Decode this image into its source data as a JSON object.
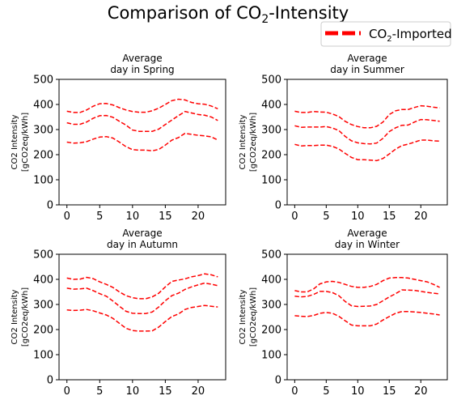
{
  "figure": {
    "title_main": "Comparison of CO",
    "title_sub": "2",
    "title_tail": "-Intensity",
    "legend": {
      "label_main": "CO",
      "label_sub": "2",
      "label_tail": "-Imported",
      "color": "#ff0000",
      "placement": "top-right"
    }
  },
  "chart_data": [
    {
      "type": "line",
      "title": [
        "Average",
        "day in Spring"
      ],
      "ylabel": [
        "CO2 Intensity",
        "[gCO2eq/kWh]"
      ],
      "xlim": [
        -1.2,
        24.2
      ],
      "ylim": [
        0,
        500
      ],
      "xticks": [
        0,
        5,
        10,
        15,
        20
      ],
      "yticks": [
        0,
        100,
        200,
        300,
        400,
        500
      ],
      "line_color": "#ff0000",
      "line_style": "dashed",
      "x": [
        0,
        1,
        2,
        3,
        4,
        5,
        6,
        7,
        8,
        9,
        10,
        11,
        12,
        13,
        14,
        15,
        16,
        17,
        18,
        19,
        20,
        21,
        22,
        23
      ],
      "series": [
        {
          "values": [
            373,
            368,
            368,
            378,
            393,
            403,
            404,
            398,
            387,
            378,
            372,
            369,
            369,
            375,
            385,
            400,
            415,
            421,
            418,
            408,
            403,
            401,
            394,
            383
          ]
        },
        {
          "values": [
            327,
            321,
            321,
            330,
            345,
            355,
            356,
            349,
            333,
            318,
            298,
            293,
            293,
            293,
            302,
            320,
            338,
            355,
            372,
            366,
            360,
            357,
            350,
            336
          ]
        },
        {
          "values": [
            250,
            246,
            247,
            252,
            262,
            270,
            272,
            266,
            250,
            232,
            220,
            218,
            218,
            215,
            221,
            238,
            258,
            268,
            285,
            281,
            277,
            275,
            271,
            258
          ]
        }
      ]
    },
    {
      "type": "line",
      "title": [
        "Average",
        "day in Summer"
      ],
      "ylabel": [
        "CO2 Intensity",
        "[gCO2eq/kWh]"
      ],
      "xlim": [
        -1.2,
        24.2
      ],
      "ylim": [
        0,
        500
      ],
      "xticks": [
        0,
        5,
        10,
        15,
        20
      ],
      "yticks": [
        0,
        100,
        200,
        300,
        400,
        500
      ],
      "line_color": "#ff0000",
      "line_style": "dashed",
      "x": [
        0,
        1,
        2,
        3,
        4,
        5,
        6,
        7,
        8,
        9,
        10,
        11,
        12,
        13,
        14,
        15,
        16,
        17,
        18,
        19,
        20,
        21,
        22,
        23
      ],
      "series": [
        {
          "values": [
            373,
            368,
            368,
            372,
            370,
            369,
            362,
            352,
            333,
            320,
            312,
            307,
            307,
            313,
            330,
            360,
            375,
            380,
            380,
            388,
            395,
            393,
            389,
            386
          ]
        },
        {
          "values": [
            315,
            309,
            310,
            310,
            310,
            312,
            306,
            296,
            273,
            255,
            247,
            244,
            243,
            246,
            265,
            292,
            307,
            317,
            318,
            330,
            340,
            339,
            336,
            333
          ]
        },
        {
          "values": [
            241,
            235,
            236,
            236,
            238,
            238,
            233,
            223,
            205,
            189,
            180,
            180,
            178,
            176,
            185,
            203,
            222,
            236,
            242,
            250,
            258,
            258,
            255,
            254
          ]
        }
      ]
    },
    {
      "type": "line",
      "title": [
        "Average",
        "day in Autumn"
      ],
      "ylabel": [
        "CO2 Intensity",
        "[gCO2eq/kWh]"
      ],
      "xlim": [
        -1.2,
        24.2
      ],
      "ylim": [
        0,
        500
      ],
      "xticks": [
        0,
        5,
        10,
        15,
        20
      ],
      "yticks": [
        0,
        100,
        200,
        300,
        400,
        500
      ],
      "line_color": "#ff0000",
      "line_style": "dashed",
      "x": [
        0,
        1,
        2,
        3,
        4,
        5,
        6,
        7,
        8,
        9,
        10,
        11,
        12,
        13,
        14,
        15,
        16,
        17,
        18,
        19,
        20,
        21,
        22,
        23
      ],
      "series": [
        {
          "values": [
            405,
            400,
            401,
            408,
            403,
            390,
            380,
            368,
            350,
            335,
            327,
            323,
            323,
            330,
            345,
            370,
            392,
            397,
            402,
            410,
            415,
            422,
            418,
            410
          ]
        },
        {
          "values": [
            365,
            361,
            362,
            365,
            355,
            343,
            333,
            314,
            293,
            273,
            265,
            264,
            264,
            270,
            290,
            315,
            335,
            345,
            360,
            370,
            378,
            385,
            381,
            375
          ]
        },
        {
          "values": [
            278,
            276,
            277,
            280,
            275,
            266,
            258,
            245,
            225,
            205,
            196,
            194,
            194,
            195,
            210,
            232,
            252,
            262,
            280,
            288,
            292,
            296,
            293,
            290
          ]
        }
      ]
    },
    {
      "type": "line",
      "title": [
        "Average",
        "day in Winter"
      ],
      "ylabel": [
        "CO2 Intensity",
        "[gCO2eq/kWh]"
      ],
      "xlim": [
        -1.2,
        24.2
      ],
      "ylim": [
        0,
        500
      ],
      "xticks": [
        0,
        5,
        10,
        15,
        20
      ],
      "yticks": [
        0,
        100,
        200,
        300,
        400,
        500
      ],
      "line_color": "#ff0000",
      "line_style": "dashed",
      "x": [
        0,
        1,
        2,
        3,
        4,
        5,
        6,
        7,
        8,
        9,
        10,
        11,
        12,
        13,
        14,
        15,
        16,
        17,
        18,
        19,
        20,
        21,
        22,
        23
      ],
      "series": [
        {
          "values": [
            355,
            350,
            350,
            362,
            382,
            390,
            392,
            388,
            380,
            372,
            368,
            368,
            372,
            380,
            395,
            405,
            407,
            407,
            405,
            400,
            395,
            390,
            380,
            368
          ]
        },
        {
          "values": [
            333,
            330,
            332,
            340,
            352,
            352,
            347,
            335,
            312,
            295,
            292,
            293,
            294,
            300,
            315,
            330,
            343,
            358,
            357,
            356,
            352,
            348,
            345,
            342
          ]
        },
        {
          "values": [
            255,
            253,
            252,
            256,
            265,
            268,
            265,
            253,
            235,
            218,
            215,
            215,
            215,
            222,
            238,
            252,
            265,
            272,
            272,
            270,
            268,
            265,
            262,
            258
          ]
        }
      ]
    }
  ]
}
